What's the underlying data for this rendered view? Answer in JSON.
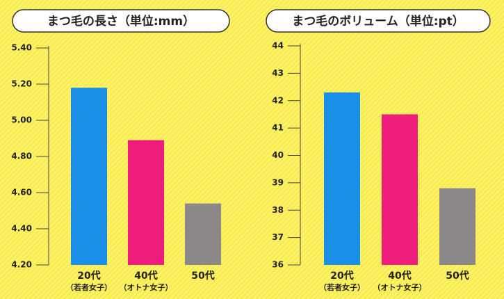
{
  "chart_data": [
    {
      "type": "bar",
      "title": "まつ毛の長さ（単位:mm）",
      "categories": [
        "20代",
        "40代",
        "50代"
      ],
      "sublabels": [
        "（若者女子）",
        "（オトナ女子）",
        null
      ],
      "values": [
        5.18,
        4.89,
        4.54
      ],
      "colors": [
        "#1a8fe8",
        "#ee1c7a",
        "#8a8889"
      ],
      "ylim": [
        4.2,
        5.4
      ],
      "yticks": [
        {
          "value": 4.2,
          "label": "4.20"
        },
        {
          "value": 4.4,
          "label": "4.40"
        },
        {
          "value": 4.6,
          "label": "4.60"
        },
        {
          "value": 4.8,
          "label": "4.80"
        },
        {
          "value": 5,
          "label": "5.00"
        },
        {
          "value": 5.2,
          "label": "5.20"
        },
        {
          "value": 5.4,
          "label": "5.40"
        }
      ]
    },
    {
      "type": "bar",
      "title": "まつ毛のボリューム（単位:pt）",
      "categories": [
        "20代",
        "40代",
        "50代"
      ],
      "sublabels": [
        "（若者女子）",
        "（オトナ女子）",
        null
      ],
      "values": [
        42.3,
        41.5,
        38.8
      ],
      "colors": [
        "#1a8fe8",
        "#ee1c7a",
        "#8a8889"
      ],
      "ylim": [
        36,
        44
      ],
      "yticks": [
        36,
        37,
        38,
        39,
        40,
        41,
        42,
        43,
        44
      ]
    }
  ]
}
